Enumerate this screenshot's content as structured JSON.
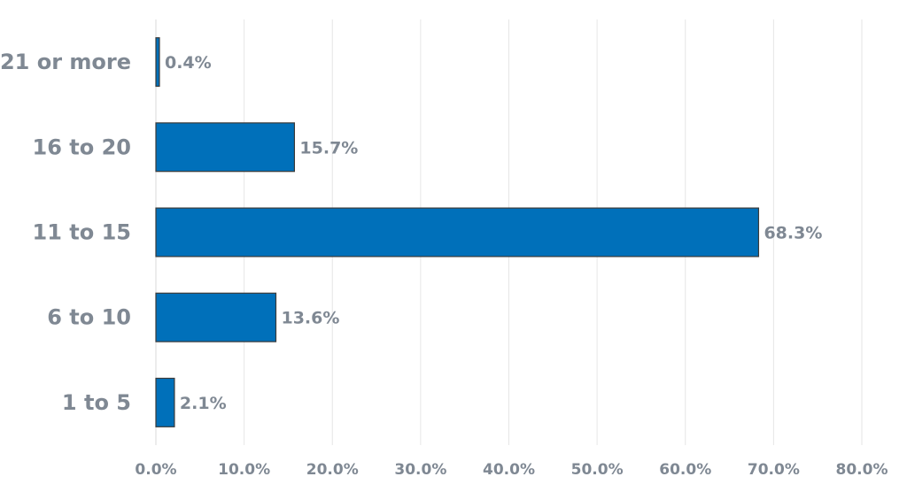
{
  "chart_data": {
    "type": "bar",
    "orientation": "horizontal",
    "categories": [
      "21 or more",
      "16 to 20",
      "11 to 15",
      "6 to 10",
      "1 to 5"
    ],
    "values": [
      0.4,
      15.7,
      68.3,
      13.6,
      2.1
    ],
    "data_labels": [
      "0.4%",
      "15.7%",
      "68.3%",
      "13.6%",
      "2.1%"
    ],
    "x_ticks": [
      "0.0%",
      "10.0%",
      "20.0%",
      "30.0%",
      "40.0%",
      "50.0%",
      "60.0%",
      "70.0%",
      "80.0%"
    ],
    "xlim": [
      0,
      80
    ],
    "grid": true,
    "legend": "none",
    "title": "",
    "xlabel": "",
    "ylabel": ""
  },
  "colors": {
    "bar": "#0070BA",
    "text": "#7F8893"
  }
}
